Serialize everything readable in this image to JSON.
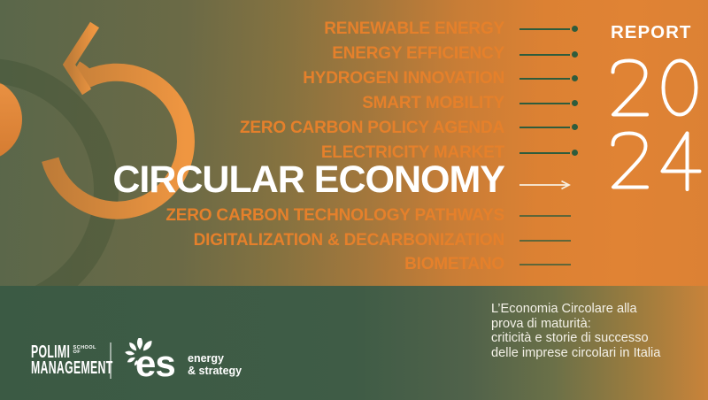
{
  "report": {
    "label": "REPORT",
    "year_top": "20",
    "year_bottom": "24"
  },
  "topics_above": [
    "RENEWABLE ENERGY",
    "ENERGY EFFICIENCY",
    "HYDROGEN INNOVATION",
    "SMART MOBILITY",
    "ZERO CARBON POLICY AGENDA",
    "ELECTRICITY MARKET"
  ],
  "headline": "CIRCULAR ECONOMY",
  "topics_below": [
    "ZERO CARBON TECHNOLOGY PATHWAYS",
    "DIGITALIZATION & DECARBONIZATION",
    "BIOMETANO"
  ],
  "subtitle": {
    "lines": [
      "L’Economia Circolare alla",
      "prova di maturità:",
      "criticità e storie di successo",
      "delle imprese circolari in Italia"
    ]
  },
  "footer": {
    "polimi_line1": "POLIMI",
    "polimi_school_line1": "SCHOOL",
    "polimi_school_line2": "OF",
    "polimi_line2": "MANAGEMENT",
    "es_logo_text": "es",
    "es_brand_line1": "energy",
    "es_brand_line2": "& strategy"
  },
  "icons": {
    "circular_arrow": "counterclockwise-circular-arrow (orange ring with arrowhead)",
    "topic_arrow": "green line ending in dot",
    "highlight_arrow": "cream right-arrow",
    "es_flower": "white petal rosette"
  },
  "colors": {
    "accent_orange_text": "#e5802b",
    "arrow_green": "#2e5c3c",
    "headline_white": "#ffffff",
    "highlight_arrow_cream": "#f7eedd",
    "top_gradient_left": "#5a674a",
    "top_gradient_right": "#dc8134",
    "bottom_band_green": "#3b5a44",
    "bottom_band_right": "#c9833a",
    "ring_orange": "#ef9641"
  }
}
